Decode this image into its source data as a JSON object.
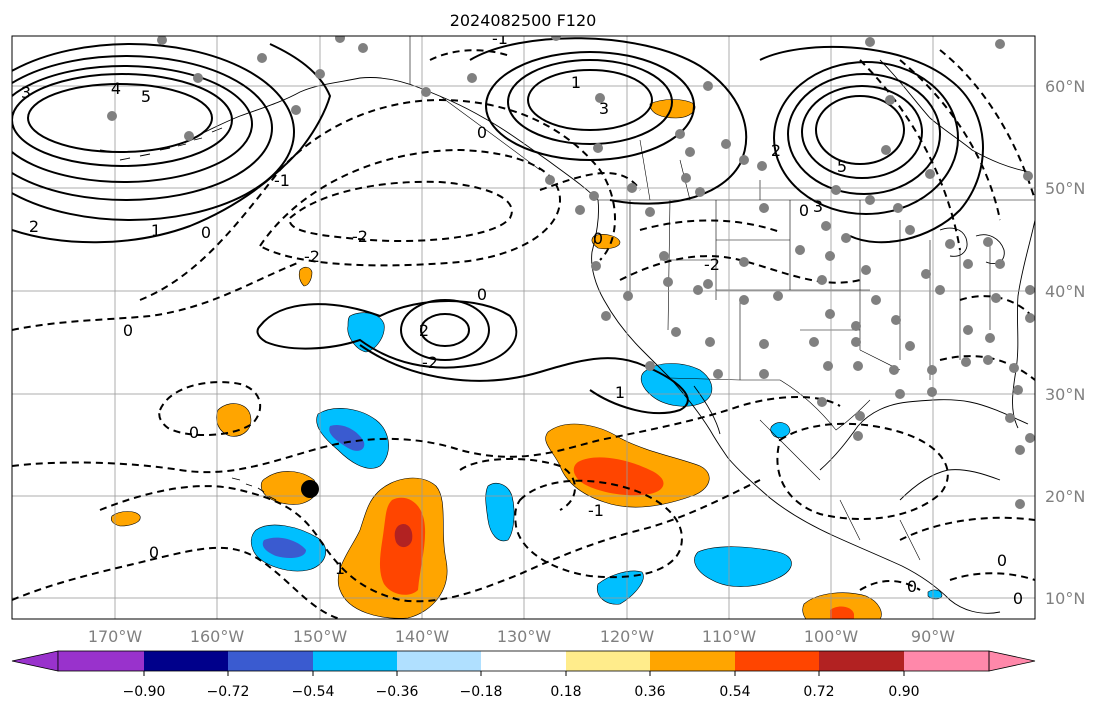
{
  "title": "2024082500 F120",
  "colors": {
    "gray_dots": "#808080",
    "fill_levels": [
      "#9932cc",
      "#00008b",
      "#3a5bd0",
      "#00bfff",
      "#b0e0ff",
      "#ffffff",
      "#ffec8b",
      "#ffa500",
      "#ff4500",
      "#b22222",
      "#ff88aa"
    ]
  },
  "lat_labels": [
    "60°N",
    "50°N",
    "40°N",
    "30°N",
    "20°N",
    "10°N"
  ],
  "lon_labels": [
    "170°W",
    "160°W",
    "150°W",
    "140°W",
    "130°W",
    "120°W",
    "110°W",
    "100°W",
    "90°W"
  ],
  "colorbar": {
    "tick_labels": [
      "−0.90",
      "−0.72",
      "−0.54",
      "−0.36",
      "−0.18",
      "0.18",
      "0.36",
      "0.54",
      "0.72",
      "0.90"
    ]
  },
  "contour_labels": [
    {
      "name": "label-3-nw",
      "text": "3"
    },
    {
      "name": "label-4-nw",
      "text": "4"
    },
    {
      "name": "label-5-nw",
      "text": "5"
    },
    {
      "name": "label-2-west",
      "text": "2"
    },
    {
      "name": "label-1-west",
      "text": "1"
    },
    {
      "name": "label-0-west",
      "text": "0"
    },
    {
      "name": "label-neg1-a",
      "text": "-1"
    },
    {
      "name": "label-neg2-a",
      "text": "-2"
    },
    {
      "name": "label-neg2-b",
      "text": "-2"
    },
    {
      "name": "label-0-mid",
      "text": "0"
    },
    {
      "name": "label-0-ring",
      "text": "0"
    },
    {
      "name": "label-2-low",
      "text": "2"
    },
    {
      "name": "label-neg2-low",
      "text": "-2"
    },
    {
      "name": "label-1-baja",
      "text": "1"
    },
    {
      "name": "label-0-hawaii",
      "text": "0"
    },
    {
      "name": "label-0-south",
      "text": "0"
    },
    {
      "name": "label-1-south",
      "text": "1"
    },
    {
      "name": "label-0-centam",
      "text": "0"
    },
    {
      "name": "label-0-pacific",
      "text": "0"
    },
    {
      "name": "label-neg1-b",
      "text": "-1"
    },
    {
      "name": "label-3-gulf",
      "text": "3"
    },
    {
      "name": "label-0-gulf",
      "text": "0"
    },
    {
      "name": "label-5-east",
      "text": "5"
    },
    {
      "name": "label-2-east",
      "text": "2"
    },
    {
      "name": "label-3-east",
      "text": "3"
    },
    {
      "name": "label-0-east",
      "text": "0"
    },
    {
      "name": "label-neg2-west-us",
      "text": "-2"
    },
    {
      "name": "label-1-east",
      "text": "1"
    },
    {
      "name": "label-0-ec",
      "text": "0"
    },
    {
      "name": "label-0-sw",
      "text": "0"
    },
    {
      "name": "label-neg1-c",
      "text": "-1"
    }
  ]
}
